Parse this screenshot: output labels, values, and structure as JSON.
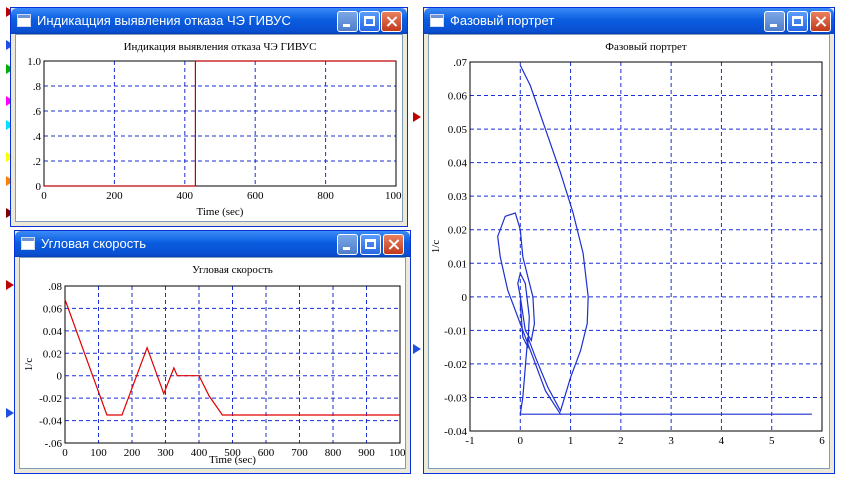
{
  "windows": {
    "indication": {
      "title": "Индикацция выявления отказа ЧЭ ГИВУС"
    },
    "speed": {
      "title": "Угловая скорость"
    },
    "phase": {
      "title": "Фазовый портрет"
    }
  },
  "ports": [
    {
      "color": "#c00000"
    },
    {
      "color": "#1f4fe0"
    },
    {
      "color": "#00b000"
    },
    {
      "color": "#ff00ff"
    },
    {
      "color": "#00e0ff"
    },
    {
      "color": "#ffff00"
    },
    {
      "color": "#ff8000"
    },
    {
      "color": "#800000"
    },
    {
      "color": "#c00000"
    },
    {
      "color": "#c00000"
    },
    {
      "color": "#1f4fe0"
    },
    {
      "color": "#1f4fe0"
    }
  ],
  "chart_data": [
    {
      "type": "line",
      "title": "Индикация выявления отказа ЧЭ ГИВУС",
      "xlabel": "Time (sec)",
      "ylabel": "",
      "xlim": [
        0,
        1000
      ],
      "ylim": [
        0,
        1
      ],
      "xticks": [
        "0",
        "200",
        "400",
        "600",
        "800",
        "1000"
      ],
      "yticks": [
        "0",
        ".2",
        ".4",
        ".6",
        ".8",
        "1.0"
      ],
      "grid": true,
      "line_color": "#c00000",
      "series": [
        {
          "x": [
            0,
            430,
            430,
            1000
          ],
          "y": [
            0,
            0,
            1,
            1
          ]
        }
      ]
    },
    {
      "type": "line",
      "title": "Угловая скорость",
      "xlabel": "Time (sec)",
      "ylabel": "1/c",
      "xlim": [
        0,
        1000
      ],
      "ylim": [
        -0.04,
        0.07
      ],
      "xticks": [
        "0",
        "100",
        "200",
        "300",
        "400",
        "500",
        "600",
        "700",
        "800",
        "900",
        "1000"
      ],
      "yticks": [
        ".08",
        "0.06",
        "0.04",
        "0.02",
        "0",
        "-0.02",
        "-0.04",
        "-.06"
      ],
      "grid": true,
      "line_color": "#e00000",
      "series": [
        {
          "x": [
            0,
            125,
            170,
            245,
            295,
            325,
            335,
            400,
            430,
            470,
            1000
          ],
          "y": [
            0.068,
            -0.035,
            -0.035,
            0.025,
            -0.016,
            0.007,
            0.0,
            0.0,
            -0.018,
            -0.035,
            -0.035
          ]
        }
      ]
    },
    {
      "type": "line",
      "title": "Фазовый портрет",
      "xlabel": "",
      "ylabel": "1/c",
      "xlim": [
        -1,
        6
      ],
      "ylim": [
        -0.04,
        0.07
      ],
      "xticks": [
        "-1",
        "0",
        "1",
        "2",
        "3",
        "4",
        "5",
        "6"
      ],
      "yticks": [
        ".07",
        "0.06",
        "0.05",
        "0.04",
        "0.03",
        "0.02",
        "0.01",
        "0",
        "-0.01",
        "-0.02",
        "-0.03",
        "-0.04"
      ],
      "grid": true,
      "line_color": "#1c2fd0",
      "series": [
        {
          "x": [
            0.0,
            0.2,
            0.5,
            0.8,
            1.05,
            1.25,
            1.35,
            1.33,
            1.2,
            1.0,
            0.8,
            0.55,
            0.3,
            0.15,
            0.05,
            0.0,
            0.05,
            5.8
          ],
          "y": [
            0.069,
            0.063,
            0.05,
            0.037,
            0.025,
            0.013,
            0.0,
            -0.008,
            -0.016,
            -0.024,
            -0.034,
            -0.027,
            -0.018,
            -0.012,
            -0.03,
            -0.035,
            -0.035,
            -0.035
          ]
        },
        {
          "x": [
            0.8,
            0.5,
            0.25,
            0.0,
            -0.25,
            -0.4,
            -0.45,
            -0.3,
            -0.1,
            0.0,
            0.05,
            0.15,
            0.25,
            0.28,
            0.22,
            0.1,
            0.0
          ],
          "y": [
            -0.035,
            -0.028,
            -0.018,
            -0.008,
            0.002,
            0.012,
            0.018,
            0.024,
            0.025,
            0.02,
            0.012,
            0.006,
            0.0,
            -0.008,
            -0.013,
            -0.01,
            0.0
          ]
        },
        {
          "x": [
            0.0,
            -0.05,
            0.0,
            0.1,
            0.18,
            0.15,
            0.05,
            0.0
          ],
          "y": [
            0.0,
            0.004,
            0.007,
            0.004,
            -0.006,
            -0.015,
            -0.012,
            -0.002
          ]
        }
      ]
    }
  ]
}
